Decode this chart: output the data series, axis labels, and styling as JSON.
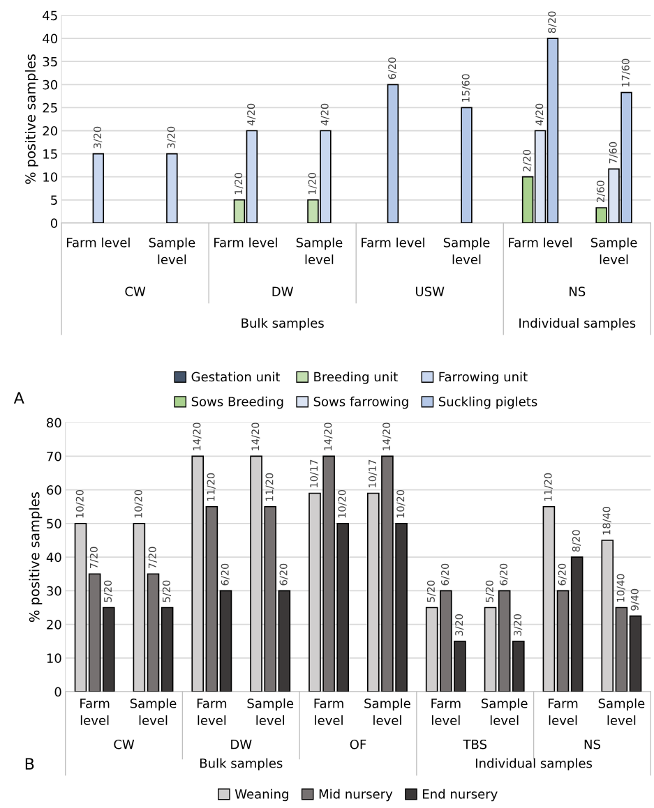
{
  "chart_data": [
    {
      "type": "bar",
      "ylabel": "% positive samples",
      "categories": [
        "Farm level",
        "Sample level",
        "Farm level",
        "Sample level",
        "Farm level",
        "Sample level",
        "Farm level",
        "Sample level"
      ],
      "ylim": [
        0,
        45
      ],
      "yticks": [
        0,
        5,
        10,
        15,
        20,
        25,
        30,
        35,
        40,
        45
      ],
      "grid": "y",
      "legend": "bottom",
      "series": [
        {
          "name": "Gestation unit",
          "color": "#44546a",
          "values": [
            null,
            null,
            null,
            null,
            null,
            null,
            null,
            null
          ],
          "value_labels": [
            null,
            null,
            null,
            null,
            null,
            null,
            null,
            null
          ]
        },
        {
          "name": "Breeding unit",
          "color": "#c3deb0",
          "values": [
            null,
            null,
            5,
            5,
            null,
            null,
            null,
            null
          ],
          "value_labels": [
            null,
            null,
            "1/20",
            "1/20",
            null,
            null,
            null,
            null
          ]
        },
        {
          "name": "Farrowing unit",
          "color": "#c9d7ef",
          "values": [
            15,
            15,
            20,
            20,
            null,
            null,
            null,
            null
          ],
          "value_labels": [
            "3/20",
            "3/20",
            "4/20",
            "4/20",
            null,
            null,
            null,
            null
          ]
        },
        {
          "name": "Sows Breeding",
          "color": "#a9d18e",
          "values": [
            null,
            null,
            null,
            null,
            null,
            null,
            10,
            3.3
          ],
          "value_labels": [
            null,
            null,
            null,
            null,
            null,
            null,
            "2/20",
            "2/60"
          ]
        },
        {
          "name": "Sows farrowing",
          "color": "#dae3f3",
          "values": [
            null,
            null,
            null,
            null,
            null,
            null,
            20,
            11.7
          ],
          "value_labels": [
            null,
            null,
            null,
            null,
            null,
            null,
            "4/20",
            "7/60"
          ]
        },
        {
          "name": "Suckling piglets",
          "color": "#b4c7e7",
          "values": [
            null,
            null,
            null,
            null,
            30,
            25,
            40,
            28.3
          ],
          "value_labels": [
            null,
            null,
            null,
            null,
            "6/20",
            "15/60",
            "8/20",
            "17/60"
          ]
        }
      ],
      "annotations": [
        "CW",
        "DW",
        "USW",
        "NS",
        "Bulk samples",
        "Individual samples",
        "A"
      ]
    },
    {
      "type": "bar",
      "ylabel": "% positive samples",
      "categories": [
        "Farm level",
        "Sample level",
        "Farm level",
        "Sample level",
        "Farm level",
        "Sample level",
        "Farm level",
        "Sample level",
        "Farm level",
        "Sample level"
      ],
      "ylim": [
        0,
        80
      ],
      "yticks": [
        0,
        10,
        20,
        30,
        40,
        50,
        60,
        70,
        80
      ],
      "grid": "y",
      "legend": "bottom",
      "series": [
        {
          "name": "Weaning",
          "color": "#d0cece",
          "values": [
            50,
            50,
            70,
            70,
            59,
            59,
            25,
            25,
            55,
            45
          ],
          "value_labels": [
            "10/20",
            "10/20",
            "14/20",
            "14/20",
            "10/17",
            "10/17",
            "5/20",
            "5/20",
            "11/20",
            "18/40"
          ]
        },
        {
          "name": "Mid nursery",
          "color": "#767171",
          "values": [
            35,
            35,
            55,
            55,
            70,
            70,
            30,
            30,
            30,
            25
          ],
          "value_labels": [
            "7/20",
            "7/20",
            "11/20",
            "11/20",
            "14/20",
            "14/20",
            "6/20",
            "6/20",
            "6/20",
            "10/40"
          ]
        },
        {
          "name": "End nursery",
          "color": "#3b3838",
          "values": [
            25,
            25,
            30,
            30,
            50,
            50,
            15,
            15,
            40,
            22.5
          ],
          "value_labels": [
            "5/20",
            "5/20",
            "6/20",
            "6/20",
            "10/20",
            "10/20",
            "3/20",
            "3/20",
            "8/20",
            "9/40"
          ]
        }
      ],
      "annotations": [
        "CW",
        "DW",
        "OF",
        "TBS",
        "NS",
        "Bulk samples",
        "Individual samples",
        "B"
      ]
    }
  ]
}
